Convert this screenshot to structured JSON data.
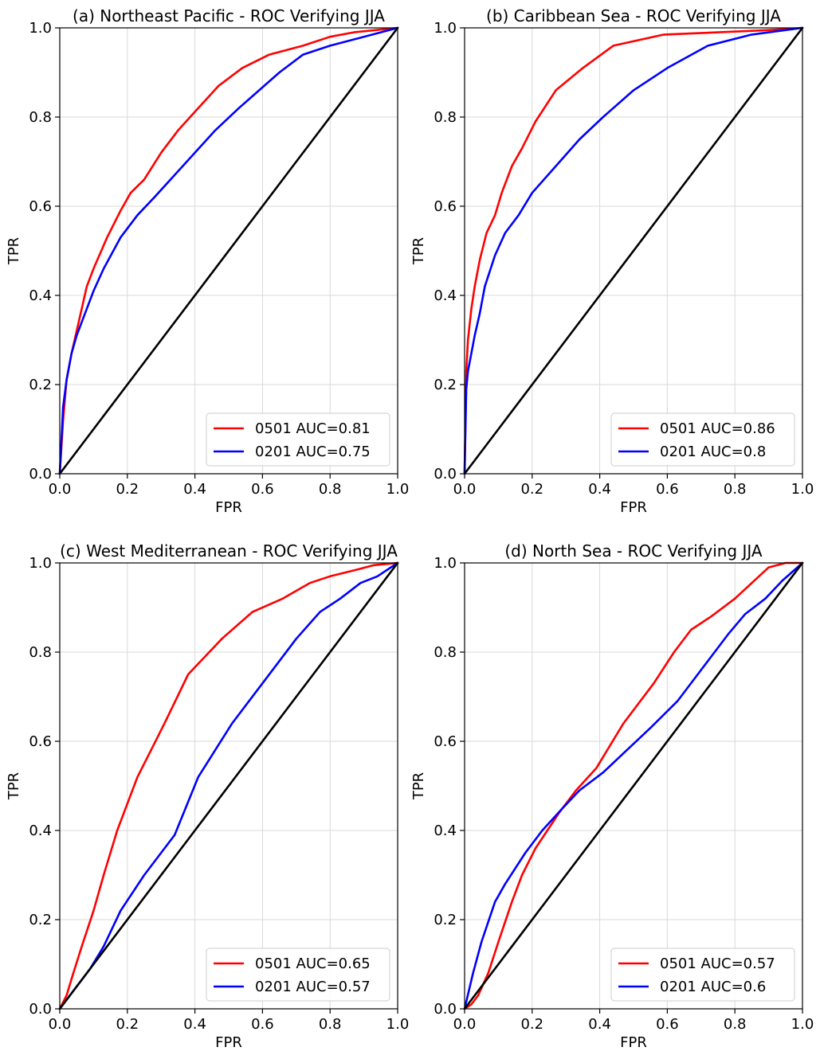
{
  "chart_data": [
    {
      "type": "line",
      "title": "(a) Northeast Pacific - ROC Verifying JJA",
      "xlabel": "FPR",
      "ylabel": "TPR",
      "xlim": [
        0,
        1
      ],
      "ylim": [
        0,
        1
      ],
      "xticks": [
        "0.0",
        "0.2",
        "0.4",
        "0.6",
        "0.8",
        "1.0"
      ],
      "yticks": [
        "0.0",
        "0.2",
        "0.4",
        "0.6",
        "0.8",
        "1.0"
      ],
      "grid": true,
      "legend_position": "lower-right",
      "series": [
        {
          "name": "0501 AUC=0.81",
          "color": "#ff0000",
          "x": [
            0,
            0.01,
            0.02,
            0.035,
            0.05,
            0.08,
            0.1,
            0.14,
            0.18,
            0.21,
            0.25,
            0.3,
            0.35,
            0.41,
            0.47,
            0.54,
            0.62,
            0.72,
            0.8,
            0.87,
            1.0
          ],
          "y": [
            0,
            0.12,
            0.21,
            0.27,
            0.32,
            0.42,
            0.46,
            0.53,
            0.59,
            0.63,
            0.66,
            0.72,
            0.77,
            0.82,
            0.87,
            0.91,
            0.94,
            0.96,
            0.98,
            0.99,
            1.0
          ]
        },
        {
          "name": "0201 AUC=0.75",
          "color": "#0000ff",
          "x": [
            0,
            0.01,
            0.02,
            0.035,
            0.05,
            0.08,
            0.1,
            0.13,
            0.18,
            0.23,
            0.28,
            0.34,
            0.4,
            0.46,
            0.53,
            0.59,
            0.65,
            0.72,
            0.8,
            0.9,
            1.0
          ],
          "y": [
            0,
            0.15,
            0.21,
            0.27,
            0.31,
            0.37,
            0.41,
            0.46,
            0.53,
            0.58,
            0.62,
            0.67,
            0.72,
            0.77,
            0.82,
            0.86,
            0.9,
            0.94,
            0.96,
            0.98,
            1.0
          ]
        },
        {
          "name": "",
          "color": "#000000",
          "x": [
            0,
            1
          ],
          "y": [
            0,
            1
          ]
        }
      ],
      "legend": [
        "0501 AUC=0.81",
        "0201 AUC=0.75"
      ]
    },
    {
      "type": "line",
      "title": "(b) Caribbean Sea - ROC Verifying JJA",
      "xlabel": "FPR",
      "ylabel": "TPR",
      "xlim": [
        0,
        1
      ],
      "ylim": [
        0,
        1
      ],
      "xticks": [
        "0.0",
        "0.2",
        "0.4",
        "0.6",
        "0.8",
        "1.0"
      ],
      "yticks": [
        "0.0",
        "0.2",
        "0.4",
        "0.6",
        "0.8",
        "1.0"
      ],
      "grid": true,
      "legend_position": "lower-right",
      "series": [
        {
          "name": "0501 AUC=0.86",
          "color": "#ff0000",
          "x": [
            0,
            0.005,
            0.01,
            0.02,
            0.03,
            0.045,
            0.065,
            0.09,
            0.11,
            0.14,
            0.17,
            0.21,
            0.27,
            0.35,
            0.44,
            0.59,
            0.75,
            0.9,
            1.0
          ],
          "y": [
            0,
            0.23,
            0.3,
            0.37,
            0.42,
            0.48,
            0.54,
            0.58,
            0.63,
            0.69,
            0.73,
            0.79,
            0.86,
            0.91,
            0.96,
            0.985,
            0.99,
            0.995,
            1.0
          ]
        },
        {
          "name": "0201 AUC=0.8",
          "color": "#0000ff",
          "x": [
            0,
            0.005,
            0.01,
            0.02,
            0.03,
            0.045,
            0.06,
            0.09,
            0.12,
            0.16,
            0.2,
            0.27,
            0.34,
            0.41,
            0.5,
            0.6,
            0.72,
            0.85,
            1.0
          ],
          "y": [
            0,
            0.19,
            0.23,
            0.27,
            0.31,
            0.36,
            0.42,
            0.49,
            0.54,
            0.58,
            0.63,
            0.69,
            0.75,
            0.8,
            0.86,
            0.91,
            0.96,
            0.985,
            1.0
          ]
        },
        {
          "name": "",
          "color": "#000000",
          "x": [
            0,
            1
          ],
          "y": [
            0,
            1
          ]
        }
      ],
      "legend": [
        "0501 AUC=0.86",
        "0201 AUC=0.8"
      ]
    },
    {
      "type": "line",
      "title": "(c) West Mediterranean - ROC Verifying JJA",
      "xlabel": "FPR",
      "ylabel": "TPR",
      "xlim": [
        0,
        1
      ],
      "ylim": [
        0,
        1
      ],
      "xticks": [
        "0.0",
        "0.2",
        "0.4",
        "0.6",
        "0.8",
        "1.0"
      ],
      "yticks": [
        "0.0",
        "0.2",
        "0.4",
        "0.6",
        "0.8",
        "1.0"
      ],
      "grid": true,
      "legend_position": "lower-right",
      "series": [
        {
          "name": "0501 AUC=0.65",
          "color": "#ff0000",
          "x": [
            0,
            0.02,
            0.04,
            0.065,
            0.1,
            0.13,
            0.17,
            0.2,
            0.23,
            0.27,
            0.31,
            0.38,
            0.48,
            0.57,
            0.66,
            0.74,
            0.8,
            0.88,
            0.93,
            1.0
          ],
          "y": [
            0,
            0.03,
            0.08,
            0.14,
            0.22,
            0.3,
            0.4,
            0.46,
            0.52,
            0.58,
            0.64,
            0.75,
            0.83,
            0.89,
            0.92,
            0.955,
            0.97,
            0.985,
            0.995,
            1.0
          ],
          "closing_x": [],
          "closing_y": []
        },
        {
          "name": "0201 AUC=0.57",
          "color": "#0000ff",
          "x": [
            0,
            0.02,
            0.05,
            0.09,
            0.13,
            0.18,
            0.25,
            0.34,
            0.41,
            0.51,
            0.6,
            0.7,
            0.77,
            0.83,
            0.89,
            0.94,
            1.0
          ],
          "y": [
            0,
            0.02,
            0.05,
            0.09,
            0.14,
            0.22,
            0.3,
            0.39,
            0.52,
            0.64,
            0.73,
            0.83,
            0.89,
            0.92,
            0.955,
            0.97,
            1.0
          ]
        },
        {
          "name": "",
          "color": "#000000",
          "x": [
            0,
            1
          ],
          "y": [
            0,
            1
          ]
        }
      ],
      "legend": [
        "0501 AUC=0.65",
        "0201 AUC=0.57"
      ]
    },
    {
      "type": "line",
      "title": "(d) North Sea - ROC Verifying JJA",
      "xlabel": "FPR",
      "ylabel": "TPR",
      "xlim": [
        0,
        1
      ],
      "ylim": [
        0,
        1
      ],
      "xticks": [
        "0.0",
        "0.2",
        "0.4",
        "0.6",
        "0.8",
        "1.0"
      ],
      "yticks": [
        "0.0",
        "0.2",
        "0.4",
        "0.6",
        "0.8",
        "1.0"
      ],
      "grid": true,
      "legend_position": "lower-right",
      "series": [
        {
          "name": "0501 AUC=0.57",
          "color": "#ff0000",
          "x": [
            0,
            0.02,
            0.04,
            0.07,
            0.1,
            0.14,
            0.17,
            0.21,
            0.28,
            0.33,
            0.39,
            0.47,
            0.56,
            0.62,
            0.67,
            0.73,
            0.8,
            0.85,
            0.9,
            0.95,
            1.0
          ],
          "y": [
            0,
            0.01,
            0.03,
            0.08,
            0.15,
            0.24,
            0.3,
            0.36,
            0.44,
            0.49,
            0.54,
            0.64,
            0.73,
            0.8,
            0.85,
            0.88,
            0.92,
            0.955,
            0.99,
            1.0,
            1.0
          ]
        },
        {
          "name": "0201 AUC=0.6",
          "color": "#0000ff",
          "x": [
            0,
            0.025,
            0.05,
            0.09,
            0.12,
            0.18,
            0.23,
            0.29,
            0.34,
            0.41,
            0.48,
            0.55,
            0.63,
            0.7,
            0.78,
            0.83,
            0.89,
            0.94,
            1.0
          ],
          "y": [
            0,
            0.08,
            0.15,
            0.24,
            0.28,
            0.35,
            0.4,
            0.45,
            0.49,
            0.53,
            0.58,
            0.63,
            0.69,
            0.76,
            0.84,
            0.885,
            0.92,
            0.96,
            1.0
          ]
        },
        {
          "name": "",
          "color": "#000000",
          "x": [
            0,
            1
          ],
          "y": [
            0,
            1
          ]
        }
      ],
      "legend": [
        "0501 AUC=0.57",
        "0201 AUC=0.6"
      ]
    }
  ]
}
